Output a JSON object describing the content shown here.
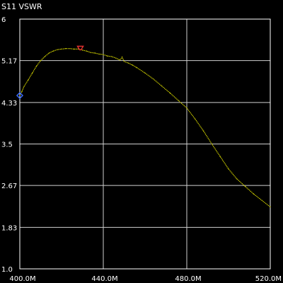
{
  "window": {
    "title": "S11 VSWR"
  },
  "chart_data": {
    "type": "line",
    "title": "S11 VSWR",
    "xlabel": "",
    "ylabel": "",
    "xlim": [
      400,
      520
    ],
    "ylim": [
      1.0,
      6.0
    ],
    "x_ticks": [
      {
        "value": 400,
        "label": "400.0M"
      },
      {
        "value": 440,
        "label": "440.0M"
      },
      {
        "value": 480,
        "label": "480.0M"
      },
      {
        "value": 520,
        "label": "520.0M"
      }
    ],
    "y_ticks": [
      {
        "value": 1.0,
        "label": "1.0"
      },
      {
        "value": 1.83,
        "label": "1.83"
      },
      {
        "value": 2.67,
        "label": "2.67"
      },
      {
        "value": 3.5,
        "label": "3.5"
      },
      {
        "value": 4.33,
        "label": "4.33"
      },
      {
        "value": 5.17,
        "label": "5.17"
      },
      {
        "value": 6.0,
        "label": "6"
      }
    ],
    "grid": true,
    "series": [
      {
        "color": "#c8c800",
        "x": [
          400,
          401,
          402,
          404,
          406,
          408,
          410,
          412,
          414,
          416,
          418,
          420,
          422,
          424,
          426,
          428,
          430,
          432,
          434,
          436,
          438,
          440,
          442,
          444,
          446,
          448,
          449,
          450,
          452,
          454,
          456,
          460,
          464,
          468,
          472,
          476,
          480,
          484,
          488,
          492,
          496,
          500,
          504,
          508,
          512,
          516,
          520
        ],
        "y": [
          4.47,
          4.55,
          4.65,
          4.78,
          4.92,
          5.06,
          5.17,
          5.25,
          5.32,
          5.36,
          5.39,
          5.4,
          5.41,
          5.41,
          5.4,
          5.4,
          5.38,
          5.36,
          5.33,
          5.32,
          5.3,
          5.29,
          5.26,
          5.25,
          5.22,
          5.18,
          5.24,
          5.15,
          5.12,
          5.08,
          5.03,
          4.92,
          4.8,
          4.66,
          4.52,
          4.37,
          4.22,
          4.0,
          3.76,
          3.5,
          3.25,
          3.0,
          2.8,
          2.65,
          2.5,
          2.37,
          2.24
        ]
      }
    ],
    "markers": [
      {
        "x": 400,
        "y": 4.47,
        "shape": "diamond",
        "color": "#3a6bff"
      },
      {
        "x": 429,
        "y": 5.4,
        "shape": "flag",
        "color": "#e03030"
      }
    ]
  }
}
